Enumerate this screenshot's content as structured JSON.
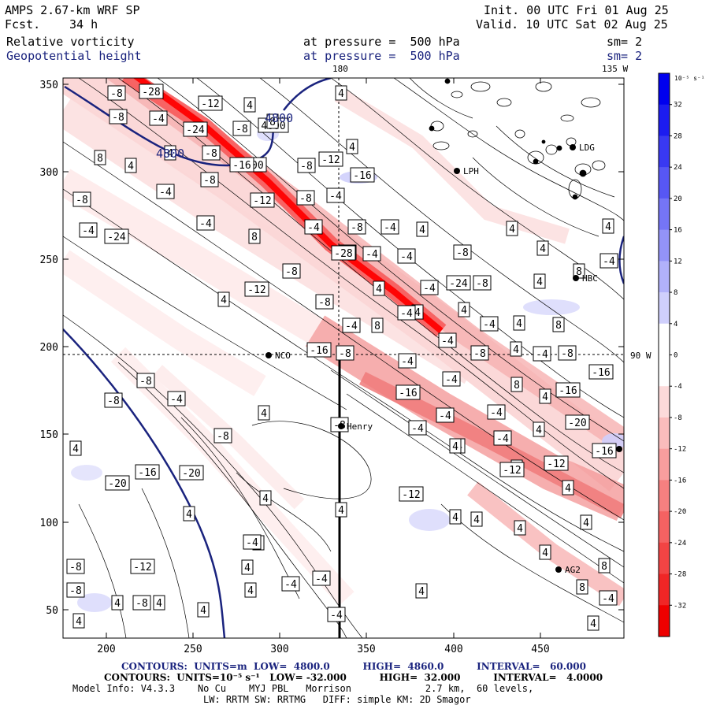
{
  "header": {
    "model": "AMPS 2.67-km WRF SP",
    "fcst_label": "Fcst.",
    "fcst_value": "34 h",
    "init": "Init. 00 UTC Fri 01 Aug 25",
    "valid": "Valid. 10 UTC Sat 02 Aug 25",
    "field1": {
      "name": "Relative vorticity",
      "level": "at pressure =  500 hPa",
      "sm": "sm= 2"
    },
    "field2": {
      "name": "Geopotential height",
      "level": "at pressure =  500 hPa",
      "sm": "sm= 2"
    },
    "top_lon_180": "180",
    "top_lon_135": "135 W",
    "right_lon_90": "90 W"
  },
  "axes": {
    "x_ticks": [
      "200",
      "250",
      "300",
      "350",
      "400",
      "450"
    ],
    "y_ticks": [
      "350",
      "300",
      "250",
      "200",
      "150",
      "100",
      "50"
    ]
  },
  "colorbar": {
    "unit_label": "10⁻⁵ s⁻¹",
    "ticks": [
      "32",
      "28",
      "24",
      "20",
      "16",
      "12",
      "8",
      "4",
      "0",
      "-4",
      "-8",
      "-12",
      "-16",
      "-20",
      "-24",
      "-28",
      "-32"
    ],
    "colors": [
      "#0000ee",
      "#1c1cf0",
      "#3939f2",
      "#5757f4",
      "#7575f6",
      "#9393f8",
      "#b1b1fa",
      "#cfcffc",
      "#ffffff",
      "#ffffff",
      "#fcdada",
      "#fabcbc",
      "#f89e9e",
      "#f68080",
      "#f46262",
      "#f24444",
      "#f02626",
      "#ee0000"
    ]
  },
  "stations": [
    {
      "name": "NCO"
    },
    {
      "name": "Henry"
    },
    {
      "name": "AG2"
    },
    {
      "name": "HBC"
    },
    {
      "name": "LPH"
    },
    {
      "name": "LDG"
    }
  ],
  "height_labels": [
    "4800",
    "4800"
  ],
  "contour_labels": [
    "-8",
    "-28",
    "-12",
    "4",
    "4800",
    "4",
    "-8",
    "-4",
    "-24",
    "-8",
    "8",
    "4",
    "-8",
    "4",
    "4800",
    "-8",
    "-12",
    "-16",
    "8",
    "4",
    "-8",
    "-4",
    "-16",
    "-8",
    "-4",
    "-12",
    "-8",
    "-4",
    "-8",
    "-4",
    "-4",
    "-24",
    "-4",
    "4",
    "4",
    "4",
    "8",
    "-4",
    "-4",
    "-28",
    "-4",
    "-8",
    "4",
    "8",
    "-4",
    "-8",
    "4",
    "-4",
    "-24",
    "-8",
    "4",
    "4",
    "-12",
    "-8",
    "4",
    "4",
    "-4",
    "-4",
    "4",
    "8",
    "-4",
    "8",
    "-4",
    "-8",
    "-8",
    "4",
    "-4",
    "-16",
    "-8",
    "-4",
    "-4",
    "-16",
    "-16",
    "8",
    "4",
    "-16",
    "-8",
    "-4",
    "-8",
    "4",
    "-4",
    "-4",
    "-20",
    "-8",
    "-4",
    "4",
    "-16",
    "4",
    "-4",
    "-8",
    "4",
    "8",
    "-12",
    "-20",
    "-16",
    "4",
    "-12",
    "-20",
    "4",
    "-12",
    "4",
    "4",
    "4",
    "4",
    "4",
    "4",
    "8",
    "4",
    "-12",
    "-8",
    "4",
    "-4",
    "-4",
    "-8",
    "8",
    "4",
    "8",
    "4",
    "-8",
    "4",
    "4",
    "4",
    "4",
    "-4",
    "-4",
    "4",
    "-4",
    "4",
    "4"
  ],
  "footer": {
    "line1": "CONTOURS:  UNITS=m  LOW=  4800.0          HIGH=  4860.0          INTERVAL=   60.000",
    "line2": "CONTOURS:  UNITS=10⁻⁵ s⁻¹   LOW= -32.000          HIGH=  32.000          INTERVAL=   4.0000",
    "line3": "Model Info: V4.3.3    No Cu    MYJ PBL   Morrison             2.7 km,  60 levels,",
    "line4": "LW: RRTM SW: RRTMG   DIFF: simple KM: 2D Smagor"
  }
}
